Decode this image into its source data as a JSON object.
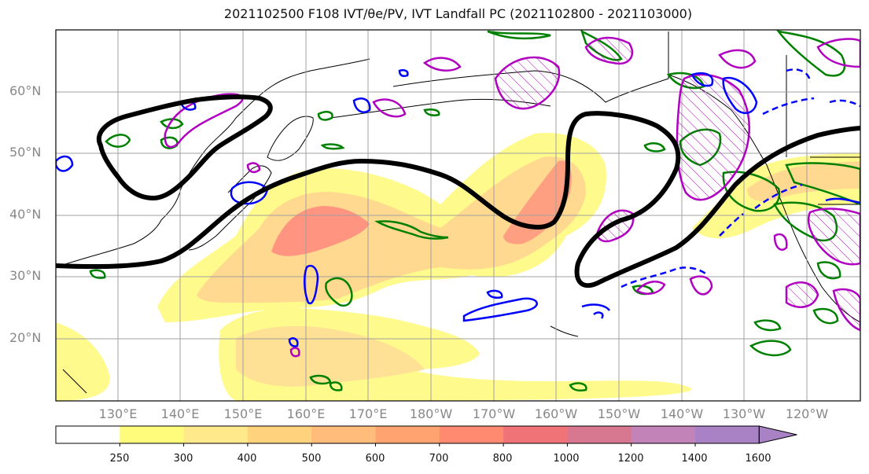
{
  "title": "2021102500 F108 IVT/θe/PV, IVT Landfall PC (2021102800 - 2021103000)",
  "lat_labels": [
    "60°N",
    "50°N",
    "40°N",
    "30°N",
    "20°N"
  ],
  "lon_labels": [
    "130°E",
    "140°E",
    "150°E",
    "160°E",
    "170°E",
    "180°W",
    "170°W",
    "160°W",
    "150°W",
    "140°W",
    "130°W",
    "120°W"
  ],
  "colorbar": {
    "labels": [
      "250",
      "300",
      "400",
      "500",
      "600",
      "700",
      "800",
      "1000",
      "1200",
      "1400",
      "1600"
    ],
    "colors": [
      "#ffffff",
      "#fffc7c",
      "#ffe98a",
      "#ffd37e",
      "#ffbc7a",
      "#ffa470",
      "#ff8a70",
      "#f07477",
      "#d87890",
      "#c284b8",
      "#a882c4"
    ]
  },
  "colors": {
    "ivt_fill": "#ffe06a",
    "ivt_core": "#ff8a7a",
    "pc_contour": "#000000",
    "theta_e": "#0000ff",
    "pv": "#b000c0",
    "green": "#008000"
  }
}
